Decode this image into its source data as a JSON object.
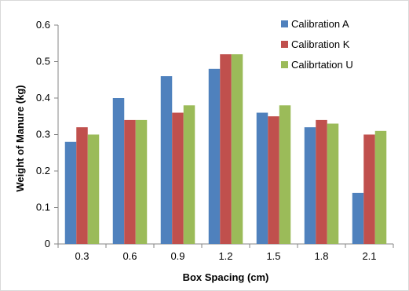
{
  "colors": {
    "series": [
      "#4F81BD",
      "#C0504D",
      "#9BBB59"
    ],
    "axis": "#868686",
    "background": "#ffffff"
  },
  "chart_data": {
    "type": "bar",
    "categories": [
      "0.3",
      "0.6",
      "0.9",
      "1.2",
      "1.5",
      "1.8",
      "2.1"
    ],
    "series": [
      {
        "name": "Calibration A",
        "values": [
          0.28,
          0.4,
          0.46,
          0.48,
          0.36,
          0.32,
          0.14
        ]
      },
      {
        "name": "Calibration K",
        "values": [
          0.32,
          0.34,
          0.36,
          0.52,
          0.35,
          0.34,
          0.3
        ]
      },
      {
        "name": "Calibrtation U",
        "values": [
          0.3,
          0.34,
          0.38,
          0.52,
          0.38,
          0.33,
          0.31
        ]
      }
    ],
    "xlabel": "Box Spacing (cm)",
    "ylabel": "Weight of Manure (kg)",
    "ylim": [
      0,
      0.6
    ],
    "yticks": [
      "0",
      "0.1",
      "0.2",
      "0.3",
      "0.4",
      "0.5",
      "0.6"
    ],
    "grid": false,
    "legend_position": "top-right"
  }
}
